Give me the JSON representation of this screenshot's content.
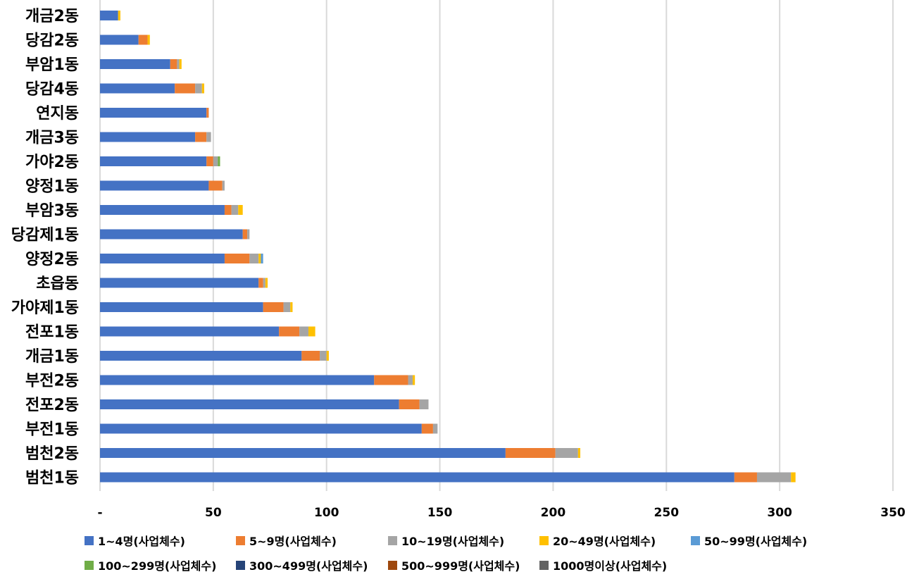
{
  "chart_data": {
    "type": "bar",
    "orientation": "horizontal",
    "stacked": true,
    "title": "",
    "xlabel": "",
    "ylabel": "",
    "xlim": [
      0,
      350
    ],
    "x_ticks": [
      0,
      50,
      100,
      150,
      200,
      250,
      300,
      350
    ],
    "x_tick_labels": [
      "-",
      "50",
      "100",
      "150",
      "200",
      "250",
      "300",
      "350"
    ],
    "grid": true,
    "legend_position": "bottom",
    "categories": [
      "개금2동",
      "당감2동",
      "부암1동",
      "당감4동",
      "연지동",
      "개금3동",
      "가야2동",
      "양정1동",
      "부암3동",
      "당감제1동",
      "양정2동",
      "초읍동",
      "가야제1동",
      "전포1동",
      "개금1동",
      "부전2동",
      "전포2동",
      "부전1동",
      "범천2동",
      "범천1동"
    ],
    "series": [
      {
        "name": "1~4명(사업체수)",
        "color": "#4472C4",
        "values": [
          8,
          17,
          31,
          33,
          47,
          42,
          47,
          48,
          55,
          63,
          55,
          70,
          72,
          79,
          89,
          121,
          132,
          142,
          179,
          280
        ]
      },
      {
        "name": "5~9명(사업체수)",
        "color": "#ED7D31",
        "values": [
          0,
          4,
          3,
          9,
          1,
          5,
          3,
          6,
          3,
          2,
          11,
          2,
          9,
          9,
          8,
          15,
          9,
          5,
          22,
          10
        ]
      },
      {
        "name": "10~19명(사업체수)",
        "color": "#A5A5A5",
        "values": [
          0,
          0,
          1,
          3,
          0,
          2,
          2,
          1,
          3,
          1,
          4,
          1,
          3,
          4,
          3,
          2,
          4,
          2,
          10,
          15
        ]
      },
      {
        "name": "20~49명(사업체수)",
        "color": "#FFC000",
        "values": [
          1,
          1,
          1,
          1,
          0,
          0,
          0,
          0,
          2,
          0,
          1,
          1,
          1,
          3,
          1,
          1,
          0,
          0,
          1,
          2
        ]
      },
      {
        "name": "50~99명(사업체수)",
        "color": "#5B9BD5",
        "values": [
          0,
          0,
          0,
          0,
          0,
          0,
          0,
          0,
          0,
          0,
          1,
          0,
          0,
          0,
          0,
          0,
          0,
          0,
          0,
          0
        ]
      },
      {
        "name": "100~299명(사업체수)",
        "color": "#70AD47",
        "values": [
          0,
          0,
          0,
          0,
          0,
          0,
          1,
          0,
          0,
          0,
          0,
          0,
          0,
          0,
          0,
          0,
          0,
          0,
          0,
          0
        ]
      },
      {
        "name": "300~499명(사업체수)",
        "color": "#264478",
        "values": [
          0,
          0,
          0,
          0,
          0,
          0,
          0,
          0,
          0,
          0,
          0,
          0,
          0,
          0,
          0,
          0,
          0,
          0,
          0,
          0
        ]
      },
      {
        "name": "500~999명(사업체수)",
        "color": "#9E480E",
        "values": [
          0,
          0,
          0,
          0,
          0,
          0,
          0,
          0,
          0,
          0,
          0,
          0,
          0,
          0,
          0,
          0,
          0,
          0,
          0,
          0
        ]
      },
      {
        "name": "1000명이상(사업체수)",
        "color": "#636363",
        "values": [
          0,
          0,
          0,
          0,
          0,
          0,
          0,
          0,
          0,
          0,
          0,
          0,
          0,
          0,
          0,
          0,
          0,
          0,
          0,
          0
        ]
      }
    ]
  }
}
